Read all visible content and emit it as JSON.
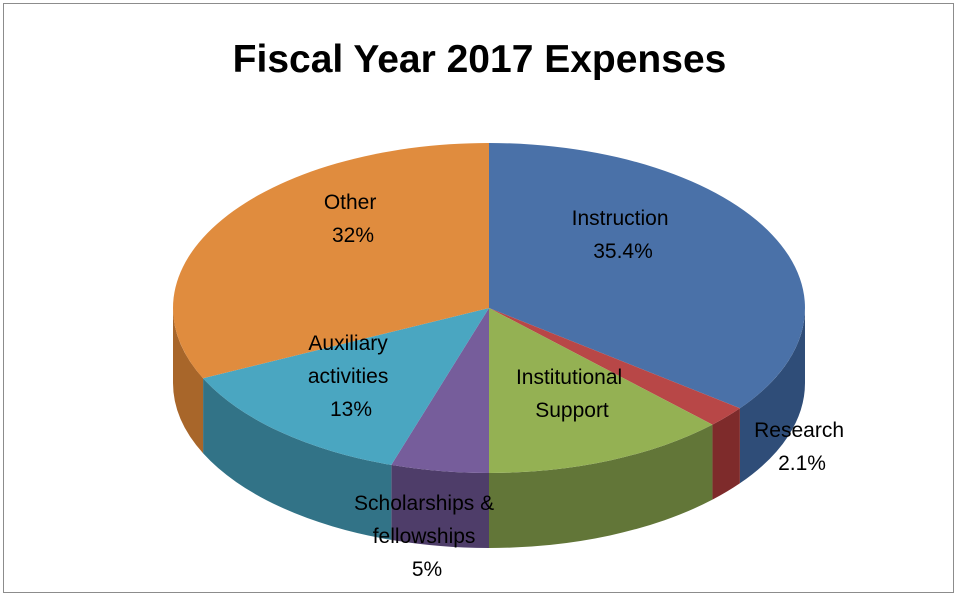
{
  "chart_data": {
    "type": "pie",
    "title": "Fiscal Year 2017 Expenses",
    "three_d": true,
    "slices": [
      {
        "label": "Instruction",
        "value_label": "35.4%",
        "value": 35.4,
        "color": "#4a71a8",
        "side_color": "#2f4d78"
      },
      {
        "label": "Research",
        "value_label": "2.1%",
        "value": 2.1,
        "color": "#b84747",
        "side_color": "#7e2b2b"
      },
      {
        "label": "Institutional Support",
        "value_label": "",
        "value": 12.5,
        "color": "#94b153",
        "side_color": "#627638"
      },
      {
        "label": "Scholarships & fellowships",
        "value_label": "5%",
        "value": 5,
        "color": "#765d9b",
        "side_color": "#4e3d69"
      },
      {
        "label": "Auxiliary activities",
        "value_label": "13%",
        "value": 13,
        "color": "#4aa6c1",
        "side_color": "#327387"
      },
      {
        "label": "Other",
        "value_label": "32%",
        "value": 32,
        "color": "#e08c3e",
        "side_color": "#a8662a"
      }
    ],
    "label_lines": {
      "instruction": [
        "Instruction",
        "35.4%"
      ],
      "research": [
        "Research",
        "2.1%"
      ],
      "institutional": [
        "Institutional",
        "Support"
      ],
      "scholarships": [
        "Scholarships &",
        "fellowships",
        "5%"
      ],
      "auxiliary": [
        "Auxiliary",
        "activities",
        "13%"
      ],
      "other": [
        "Other",
        "32%"
      ]
    }
  }
}
